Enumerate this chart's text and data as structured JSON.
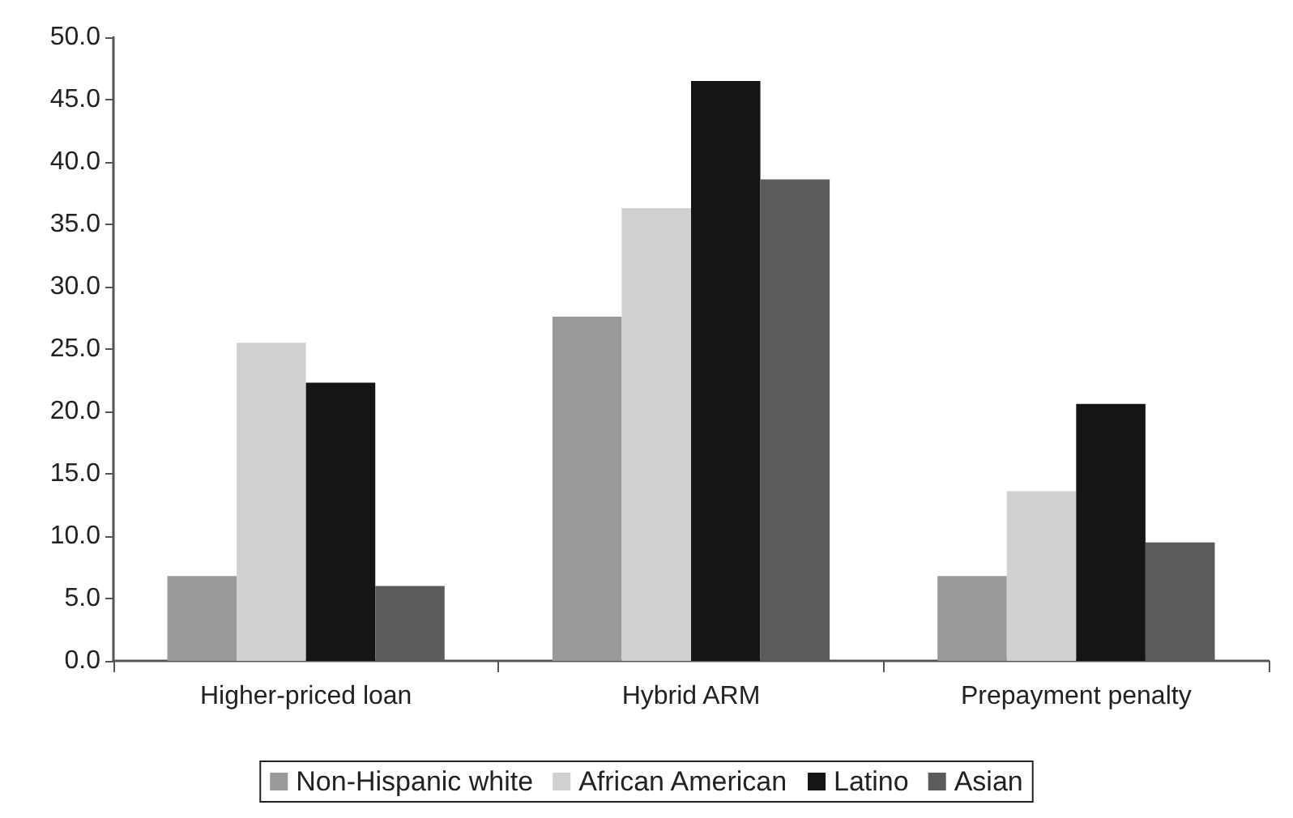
{
  "chart_data": {
    "type": "bar",
    "categories": [
      "Higher-priced loan",
      "Hybrid ARM",
      "Prepayment penalty"
    ],
    "series": [
      {
        "name": "Non-Hispanic white",
        "color": "#999999",
        "values": [
          6.8,
          27.6,
          6.8
        ]
      },
      {
        "name": "African American",
        "color": "#cfd0cf",
        "values": [
          25.5,
          36.3,
          13.6
        ]
      },
      {
        "name": "Latino",
        "color": "#151515",
        "values": [
          22.3,
          46.5,
          20.6
        ]
      },
      {
        "name": "Asian",
        "color": "#5b5b5b",
        "values": [
          6.0,
          38.6,
          9.5
        ]
      }
    ],
    "ylim": [
      0,
      50
    ],
    "yticks": [
      {
        "value": 0,
        "label": "0.0"
      },
      {
        "value": 5,
        "label": "5.0"
      },
      {
        "value": 10,
        "label": "10.0"
      },
      {
        "value": 15,
        "label": "15.0"
      },
      {
        "value": 20,
        "label": "20.0"
      },
      {
        "value": 25,
        "label": "25.0"
      },
      {
        "value": 30,
        "label": "30.0"
      },
      {
        "value": 35,
        "label": "35.0"
      },
      {
        "value": 40,
        "label": "40.0"
      },
      {
        "value": 45,
        "label": "45.0"
      },
      {
        "value": 50,
        "label": "50.0"
      }
    ],
    "grid": false,
    "legend": "bottom"
  }
}
